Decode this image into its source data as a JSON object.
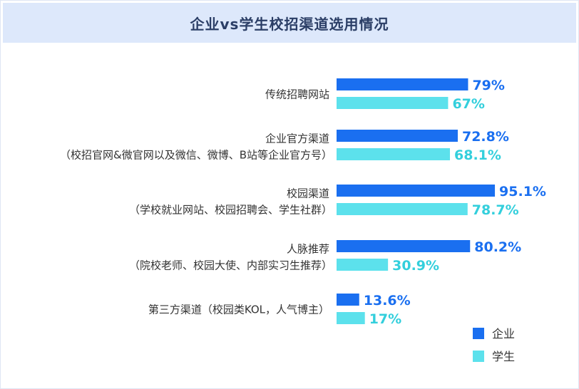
{
  "chart_data": {
    "type": "bar",
    "orientation": "horizontal",
    "title": "企业vs学生校招渠道选用情况",
    "categories": [
      {
        "label": "传统招聘网站",
        "sub": ""
      },
      {
        "label": "企业官方渠道",
        "sub": "（校招官网&微官网以及微信、微博、B站等企业官方号）"
      },
      {
        "label": "校园渠道",
        "sub": "（学校就业网站、校园招聘会、学生社群）"
      },
      {
        "label": "人脉推荐",
        "sub": "（院校老师、校园大使、内部实习生推荐）"
      },
      {
        "label": "第三方渠道（校园类KOL，人气博主）",
        "sub": ""
      }
    ],
    "series": [
      {
        "name": "企业",
        "color": "#1a6ff0",
        "values": [
          79,
          72.8,
          95.1,
          80.2,
          13.6
        ],
        "labels": [
          "79%",
          "72.8%",
          "95.1%",
          "80.2%",
          "13.6%"
        ]
      },
      {
        "name": "学生",
        "color": "#5ce1ec",
        "values": [
          67,
          68.1,
          78.7,
          30.9,
          17
        ],
        "labels": [
          "67%",
          "68.1%",
          "78.7%",
          "30.9%",
          "17%"
        ]
      }
    ],
    "xlim": [
      0,
      100
    ],
    "legend_position": "bottom-right",
    "grid": false
  }
}
